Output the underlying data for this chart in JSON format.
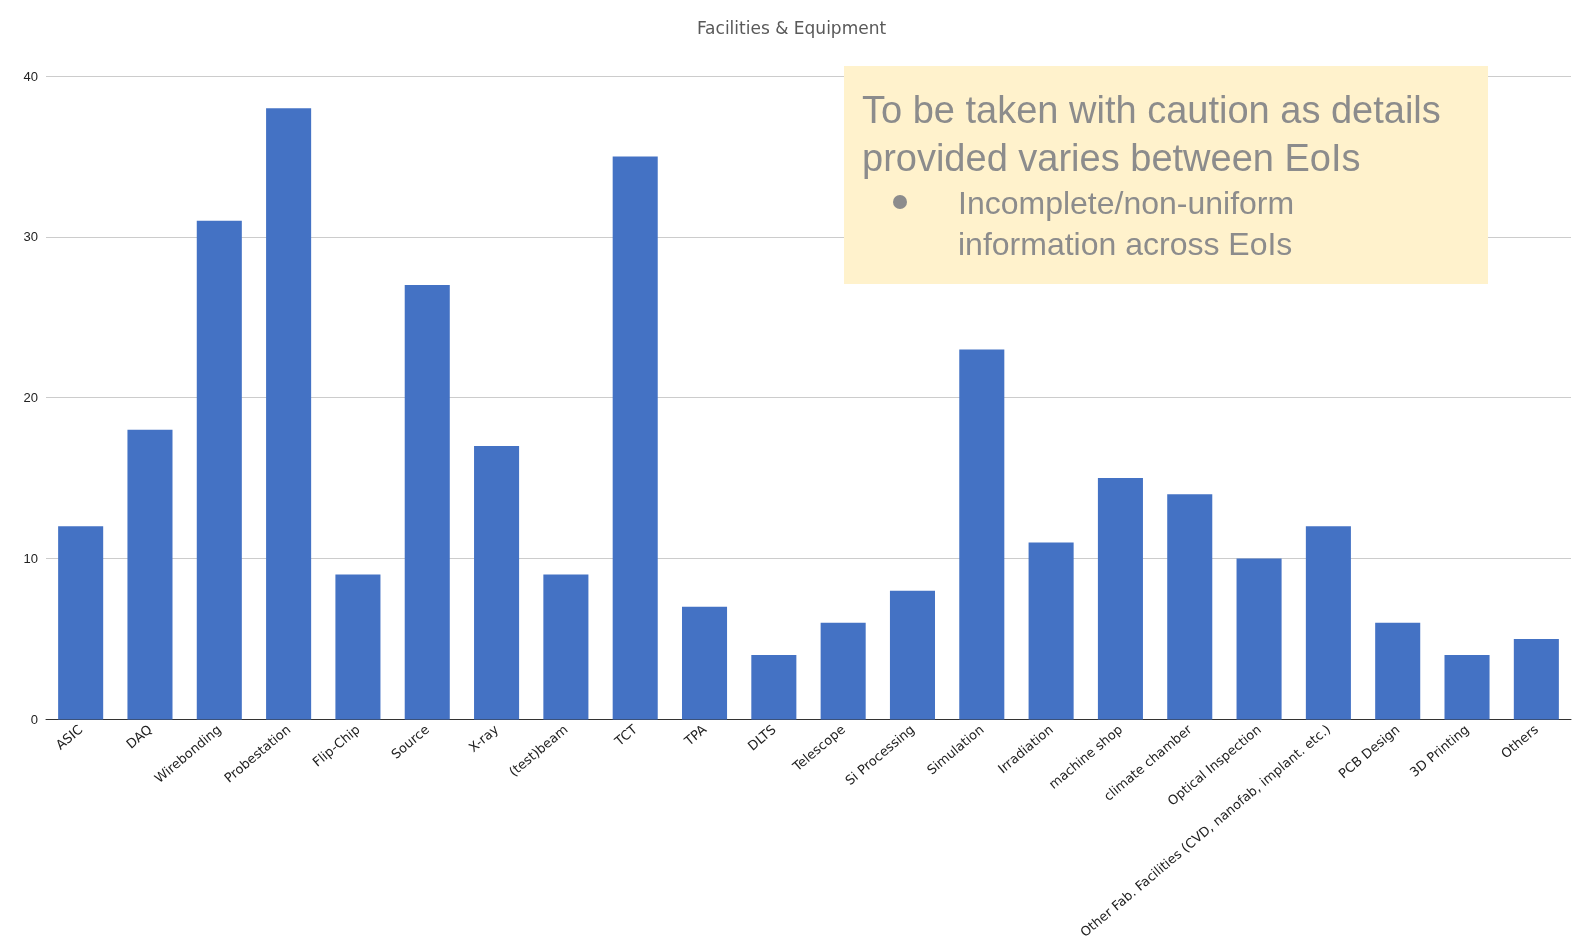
{
  "chart_data": {
    "type": "bar",
    "title": "Facilities & Equipment",
    "categories": [
      "ASIC",
      "DAQ",
      "Wirebonding",
      "Probestation",
      "Flip-Chip",
      "Source",
      "X-ray",
      "(test)beam",
      "TCT",
      "TPA",
      "DLTS",
      "Telescope",
      "Si Processing",
      "Simulation",
      "Irradiation",
      "machine shop",
      "climate chamber",
      "Optical Inspection",
      "Other Fab. Facilities (CVD, nanofab, implant. etc.)",
      "PCB Design",
      "3D Printing",
      "Others"
    ],
    "values": [
      12,
      18,
      31,
      38,
      9,
      27,
      17,
      9,
      35,
      7,
      4,
      6,
      8,
      23,
      11,
      15,
      14,
      10,
      12,
      6,
      4,
      5
    ],
    "color": "#4472c4",
    "ylim": [
      0,
      40
    ],
    "yticks": [
      0,
      10,
      20,
      30,
      40
    ],
    "grid": "y",
    "annotations": [
      "To be taken with caution as details provided varies between EoIs",
      "Incomplete/non-uniform information across EoIs"
    ]
  }
}
